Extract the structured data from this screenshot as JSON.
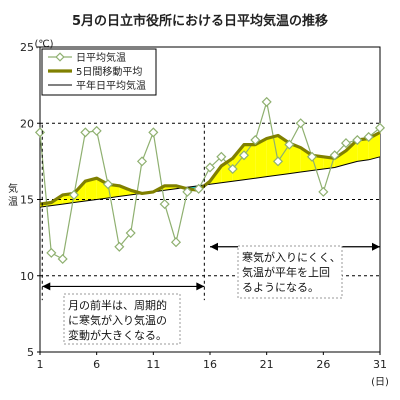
{
  "chart_data": {
    "type": "line",
    "title": "5月の日立市役所における日平均気温の推移",
    "y_unit": "(℃)",
    "ylabel": "気温",
    "x_unit": "(日)",
    "xlim": [
      1,
      31
    ],
    "ylim": [
      5,
      25
    ],
    "x_ticks": [
      1,
      6,
      11,
      16,
      21,
      26,
      31
    ],
    "y_ticks": [
      5,
      10,
      15,
      20,
      25
    ],
    "y_gridlines": [
      10,
      15,
      20
    ],
    "grid": "dashed",
    "legend_position": "top-left",
    "x": [
      1,
      2,
      3,
      4,
      5,
      6,
      7,
      8,
      9,
      10,
      11,
      12,
      13,
      14,
      15,
      16,
      17,
      18,
      19,
      20,
      21,
      22,
      23,
      24,
      25,
      26,
      27,
      28,
      29,
      30,
      31
    ],
    "series": [
      {
        "name": "日平均気温",
        "role": "daily",
        "values": [
          19.4,
          11.5,
          11.1,
          15.3,
          19.4,
          19.5,
          16.0,
          11.9,
          12.8,
          17.5,
          19.4,
          14.7,
          12.2,
          15.5,
          15.7,
          17.1,
          17.8,
          17.0,
          17.9,
          18.9,
          21.4,
          17.5,
          18.6,
          20.0,
          17.8,
          15.5,
          17.9,
          18.7,
          18.9,
          19.1,
          19.7
        ]
      },
      {
        "name": "5日間移動平均",
        "role": "moving_average",
        "values": [
          14.7,
          14.8,
          15.3,
          15.4,
          16.2,
          16.4,
          16.0,
          15.9,
          15.6,
          15.4,
          15.5,
          15.9,
          15.9,
          15.7,
          15.6,
          16.2,
          17.2,
          17.7,
          18.6,
          18.6,
          19.0,
          19.2,
          18.7,
          18.4,
          17.9,
          17.8,
          17.7,
          18.2,
          18.9,
          19.0,
          19.4
        ]
      },
      {
        "name": "平年日平均気温",
        "role": "normal",
        "values": [
          14.5,
          14.6,
          14.7,
          14.8,
          14.9,
          15.0,
          15.1,
          15.2,
          15.3,
          15.4,
          15.5,
          15.6,
          15.7,
          15.8,
          15.9,
          16.0,
          16.1,
          16.2,
          16.3,
          16.4,
          16.5,
          16.6,
          16.7,
          16.8,
          16.9,
          17.0,
          17.1,
          17.3,
          17.5,
          17.6,
          17.8
        ]
      }
    ],
    "fill_colors": {
      "above_normal": "#ffff00",
      "below_normal": "#22c0c0"
    },
    "series_colors": {
      "daily": "#8fb070",
      "marker_fill": "#ffffff",
      "moving_average": "#808000",
      "normal": "#000000"
    },
    "annotations": [
      {
        "text": [
          "寒気が入りにくく、",
          "気温が平年を上回",
          "るようになる。"
        ],
        "range": [
          16,
          31
        ],
        "at_y": 11.9
      },
      {
        "text": [
          "月の前半は、周期的",
          "に寒気が入り気温の",
          "変動が大きくなる。"
        ],
        "range": [
          1,
          15.5
        ],
        "at_y": 9.3
      }
    ],
    "divider_x": [
      1.2,
      15.5
    ]
  }
}
